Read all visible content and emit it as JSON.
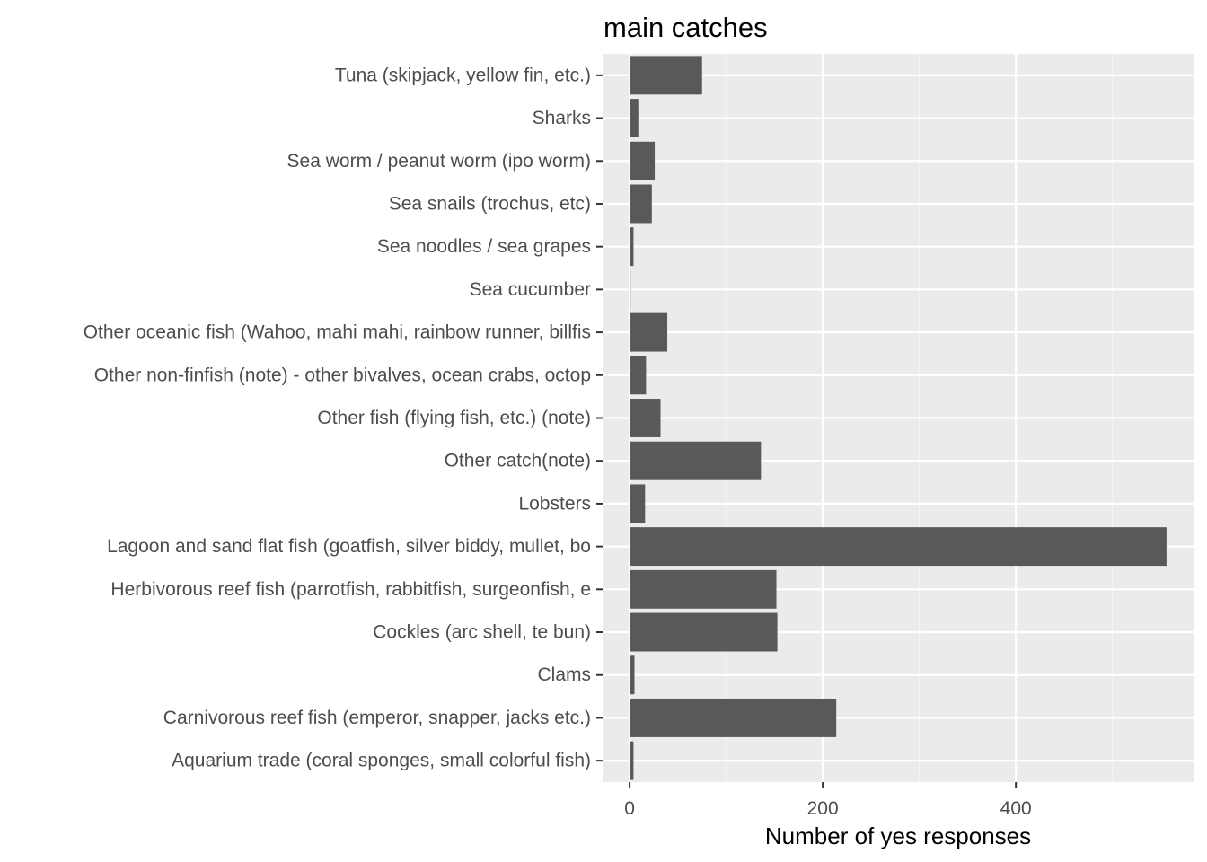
{
  "chart_data": {
    "type": "bar",
    "orientation": "horizontal",
    "title": "main catches",
    "subtitle": "",
    "xlabel": "Number of yes responses",
    "ylabel": "",
    "categories": [
      "Tuna (skipjack, yellow fin, etc.)",
      "Sharks",
      "Sea worm / peanut worm (ipo worm)",
      "Sea snails (trochus, etc)",
      "Sea noodles / sea grapes",
      "Sea cucumber",
      "Other oceanic fish (Wahoo, mahi mahi, rainbow runner, billfis",
      "Other non-finfish (note) - other bivalves, ocean crabs, octop",
      "Other fish (flying fish, etc.) (note)",
      "Other catch(note)",
      "Lobsters",
      "Lagoon and sand flat fish (goatfish, silver biddy, mullet, bo",
      "Herbivorous reef fish (parrotfish, rabbitfish, surgeonfish, e",
      "Cockles (arc shell, te bun)",
      "Clams",
      "Carnivorous reef fish (emperor, snapper, jacks etc.)",
      "Aquarium trade (coral sponges, small colorful fish)"
    ],
    "values": [
      75,
      9,
      26,
      23,
      4,
      1,
      39,
      17,
      32,
      136,
      16,
      556,
      152,
      153,
      5,
      214,
      4
    ],
    "xlim": [
      -28,
      584
    ],
    "xticks": [
      0,
      200,
      400
    ],
    "grid": true,
    "legend": "none",
    "colors": {
      "bar": "#595959",
      "panel_background": "#ebebeb",
      "grid_major": "#ffffff",
      "grid_minor": "#f5f5f5",
      "tick_text": "#4d4d4d",
      "tick_mark": "#333333",
      "title_text": "#000000"
    }
  }
}
